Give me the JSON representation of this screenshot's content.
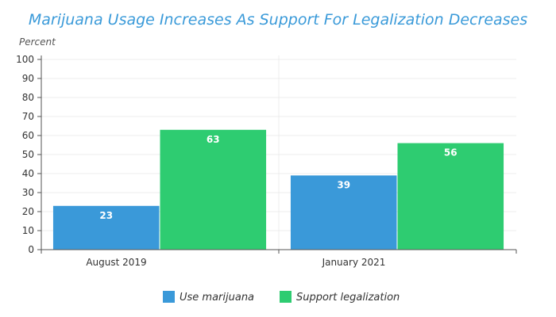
{
  "chart_data": {
    "type": "bar",
    "title": "Marijuana Usage Increases As Support For Legalization Decreases",
    "ylabel": "Percent",
    "xlabel": "",
    "ylim": [
      0,
      100
    ],
    "yticks": [
      0,
      10,
      20,
      30,
      40,
      50,
      60,
      70,
      80,
      90,
      100
    ],
    "categories": [
      "August 2019",
      "January 2021"
    ],
    "series": [
      {
        "name": "Use marijuana",
        "values": [
          23,
          39
        ],
        "color": "#3a99d9"
      },
      {
        "name": "Support legalization",
        "values": [
          63,
          56
        ],
        "color": "#2ecc71"
      }
    ],
    "data_labels": true,
    "grid": true,
    "legend": "bottom-center"
  }
}
